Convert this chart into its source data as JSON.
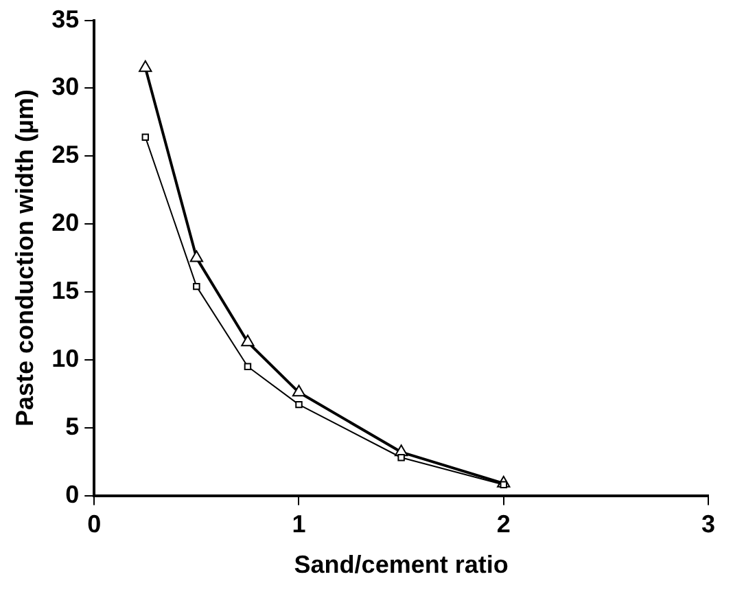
{
  "chart_data": {
    "type": "line",
    "xlabel": "Sand/cement ratio",
    "ylabel": "Paste conduction width (µm)",
    "x": [
      0.25,
      0.5,
      0.75,
      1,
      1.5,
      2
    ],
    "series": [
      {
        "color": "#000000",
        "marker": "triangle",
        "values": [
          31.5,
          17.5,
          11.3,
          7.6,
          3.2,
          0.9
        ]
      },
      {
        "color": "#000000",
        "marker": "square",
        "values": [
          26.4,
          15.4,
          9.5,
          6.7,
          2.8,
          0.8
        ]
      }
    ],
    "xlim": [
      0,
      3
    ],
    "xticks": [
      0,
      1,
      2,
      3
    ],
    "ylim": [
      0,
      35
    ],
    "yticks": [
      0,
      5,
      10,
      15,
      20,
      25,
      30,
      35
    ],
    "grid": false,
    "legend": false,
    "line_style": "solid"
  }
}
